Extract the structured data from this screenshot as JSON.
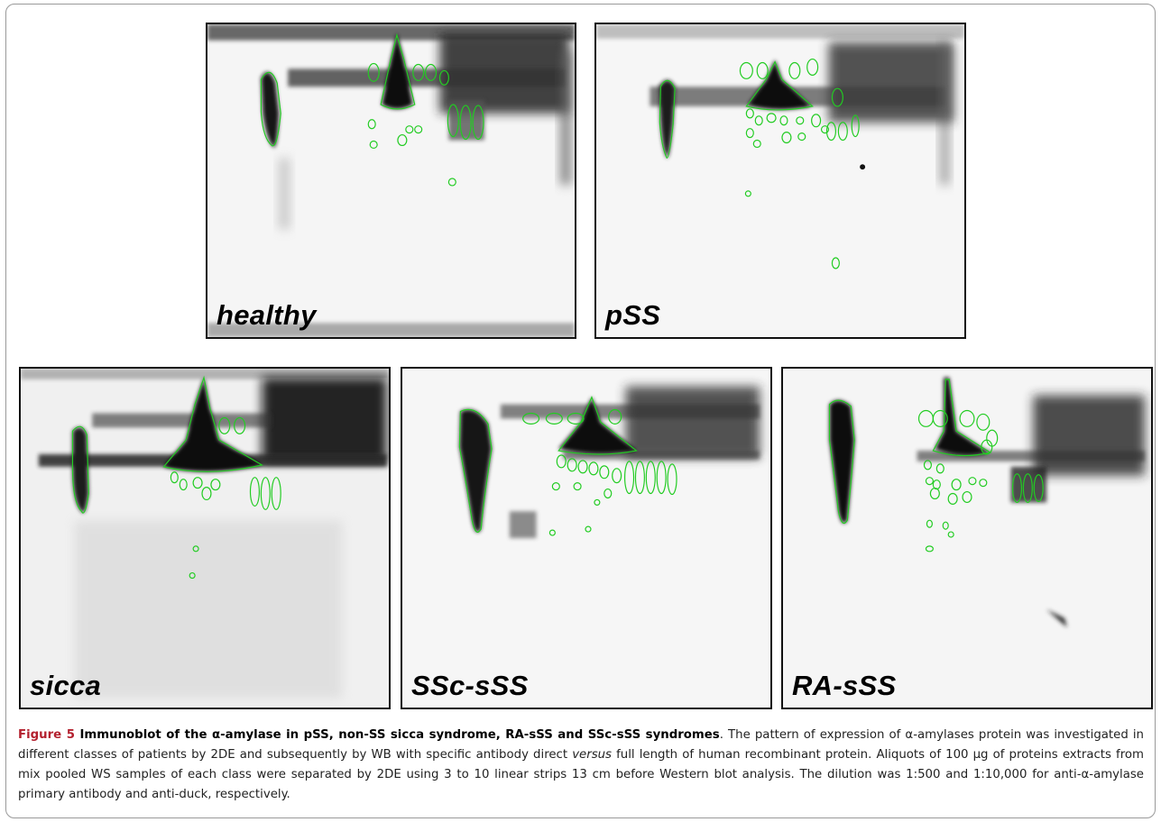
{
  "panels": [
    {
      "id": "healthy",
      "label": "healthy"
    },
    {
      "id": "pss",
      "label": "pSS"
    },
    {
      "id": "sicca",
      "label": "sicca"
    },
    {
      "id": "ssc",
      "label": "SSc-sSS"
    },
    {
      "id": "ra",
      "label": "RA-sSS"
    }
  ],
  "caption": {
    "figure_label": "Figure 5",
    "title_part1": " Immunoblot of the ",
    "alpha": "α",
    "title_part2": "-amylase in pSS, non-SS sicca syndrome, RA-sSS and SSc-sSS syndromes",
    "title_end": ".",
    "body_part1": " The pattern of expression of α-amylases protein was investigated in different classes of patients by 2DE and subsequently by WB with specific antibody direct ",
    "versus": "versus",
    "body_part2": " full length of human recombinant protein. Aliquots of 100 µg of proteins extracts from mix pooled WS samples of each class were separated by 2DE using 3 to 10 linear strips 13 cm before Western blot analysis. The dilution was 1:500 and 1:10,000 for anti-α-amylase primary antibody and anti-duck, respectively."
  },
  "colors": {
    "outline": "#22cc22",
    "blot": "#111111",
    "background": "#f4f4f4"
  }
}
